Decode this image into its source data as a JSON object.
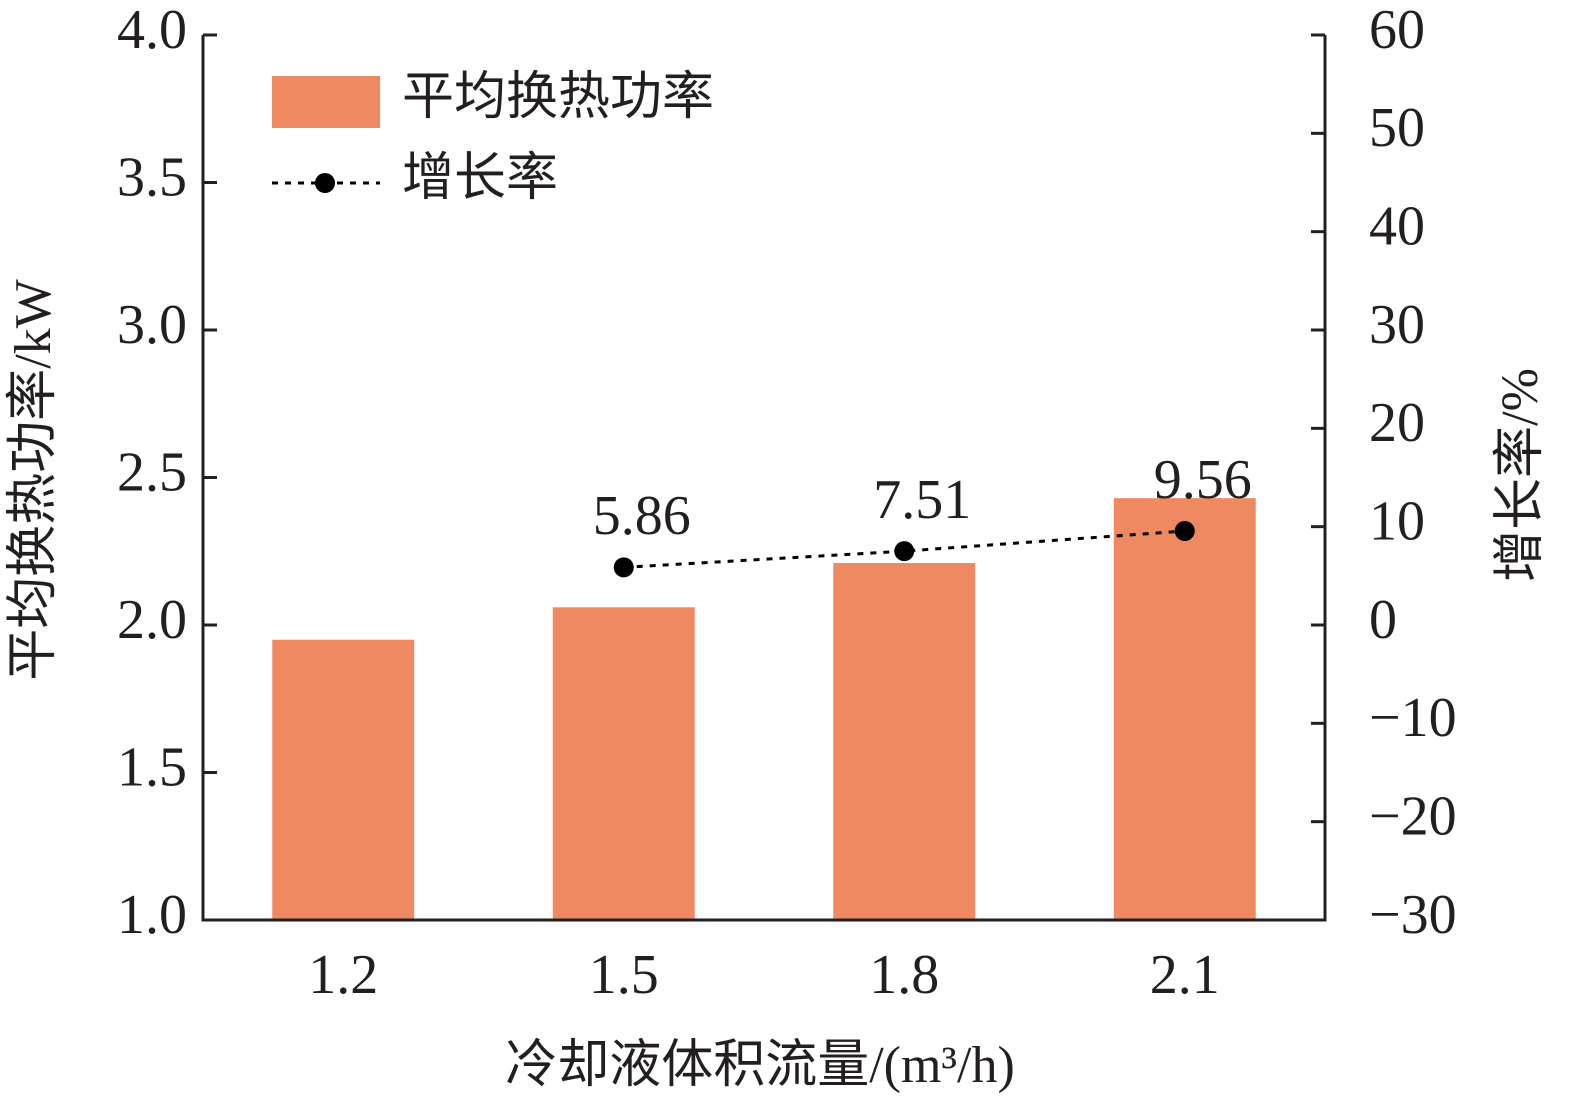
{
  "chart_data": {
    "type": "bar-line",
    "x_label": "冷却液体积流量/(m³/h)",
    "y_label": "平均换热功率/kW",
    "y2_label": "增长率/%",
    "categories": [
      "1.2",
      "1.5",
      "1.8",
      "2.1"
    ],
    "series": [
      {
        "name": "平均换热功率",
        "type": "bar",
        "color": "#ef8961",
        "values": [
          1.95,
          2.06,
          2.21,
          2.43
        ]
      },
      {
        "name": "增长率",
        "type": "line",
        "color": "#000000",
        "axis": "y2",
        "values": [
          null,
          5.86,
          7.51,
          9.56
        ]
      }
    ],
    "ylim": [
      1.0,
      4.0
    ],
    "yticks": [
      {
        "value": 1.0,
        "label": "1.0"
      },
      1.5,
      {
        "value": 2.0,
        "label": "2.0"
      },
      2.5,
      {
        "value": 3.0,
        "label": "3.0"
      },
      3.5,
      {
        "value": 4.0,
        "label": "4.0"
      }
    ],
    "y2lim": [
      -30,
      60
    ],
    "y2ticks": [
      {
        "value": -30,
        "label": "−30"
      },
      {
        "value": -20,
        "label": "−20"
      },
      {
        "value": -10,
        "label": "−10"
      },
      0,
      10,
      20,
      30,
      40,
      50,
      60
    ],
    "legend": "upper left",
    "grid": false
  }
}
